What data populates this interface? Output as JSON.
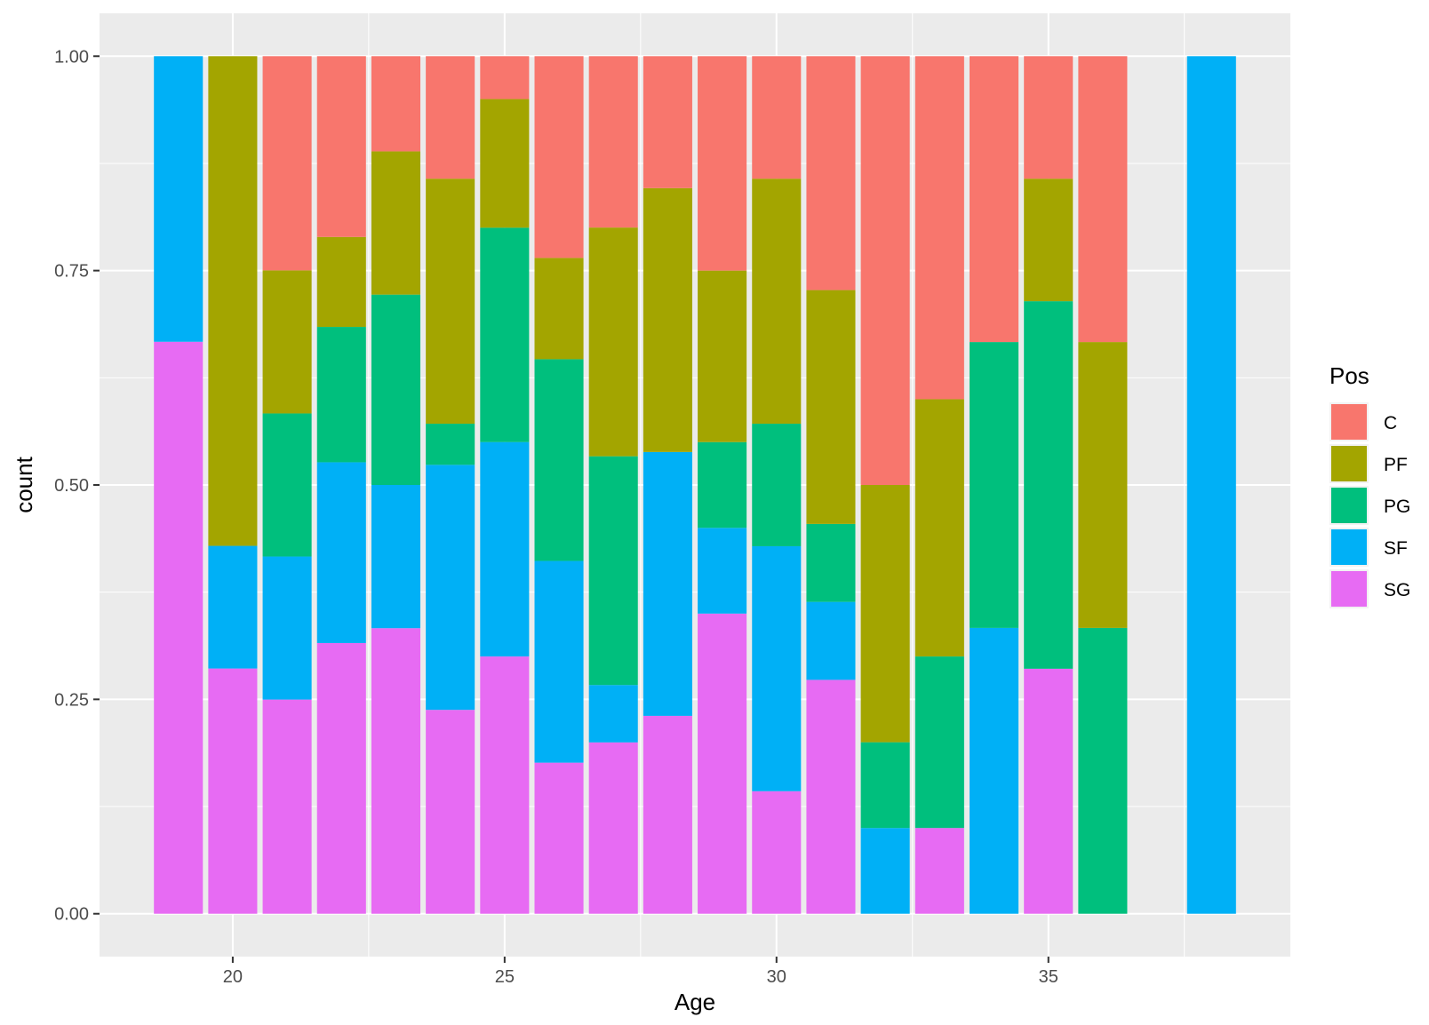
{
  "chart_data": {
    "type": "bar",
    "stacked": "fill",
    "xlabel": "Age",
    "ylabel": "count",
    "xlim": [
      17.55,
      39.45
    ],
    "ylim": [
      -0.05,
      1.05
    ],
    "x_ticks": [
      20,
      25,
      30,
      35
    ],
    "y_ticks": [
      0,
      0.25,
      0.5,
      0.75,
      1
    ],
    "y_tick_labels": [
      "0.00",
      "0.25",
      "0.50",
      "0.75",
      "1.00"
    ],
    "grid": true,
    "legend": {
      "title": "Pos",
      "position": "right"
    },
    "stack_order_bottom_to_top": [
      "SG",
      "SF",
      "PG",
      "PF",
      "C"
    ],
    "series": [
      {
        "name": "C",
        "color": "#F8766D"
      },
      {
        "name": "PF",
        "color": "#A3A500"
      },
      {
        "name": "PG",
        "color": "#00BF7D"
      },
      {
        "name": "SF",
        "color": "#00B0F6"
      },
      {
        "name": "SG",
        "color": "#E76BF3"
      }
    ],
    "bars": [
      {
        "x": 19,
        "values": {
          "C": 0,
          "PF": 0,
          "PG": 0,
          "SF": 0.333,
          "SG": 0.667
        }
      },
      {
        "x": 20,
        "values": {
          "C": 0,
          "PF": 0.571,
          "PG": 0,
          "SF": 0.143,
          "SG": 0.286
        }
      },
      {
        "x": 21,
        "values": {
          "C": 0.25,
          "PF": 0.167,
          "PG": 0.167,
          "SF": 0.167,
          "SG": 0.25
        }
      },
      {
        "x": 22,
        "values": {
          "C": 0.211,
          "PF": 0.105,
          "PG": 0.158,
          "SF": 0.211,
          "SG": 0.316
        }
      },
      {
        "x": 23,
        "values": {
          "C": 0.111,
          "PF": 0.167,
          "PG": 0.222,
          "SF": 0.167,
          "SG": 0.333
        }
      },
      {
        "x": 24,
        "values": {
          "C": 0.143,
          "PF": 0.286,
          "PG": 0.048,
          "SF": 0.286,
          "SG": 0.238
        }
      },
      {
        "x": 25,
        "values": {
          "C": 0.05,
          "PF": 0.15,
          "PG": 0.25,
          "SF": 0.25,
          "SG": 0.3
        }
      },
      {
        "x": 26,
        "values": {
          "C": 0.235,
          "PF": 0.118,
          "PG": 0.235,
          "SF": 0.235,
          "SG": 0.176
        }
      },
      {
        "x": 27,
        "values": {
          "C": 0.2,
          "PF": 0.267,
          "PG": 0.267,
          "SF": 0.067,
          "SG": 0.2
        }
      },
      {
        "x": 28,
        "values": {
          "C": 0.154,
          "PF": 0.308,
          "PG": 0,
          "SF": 0.308,
          "SG": 0.231
        }
      },
      {
        "x": 29,
        "values": {
          "C": 0.25,
          "PF": 0.2,
          "PG": 0.1,
          "SF": 0.1,
          "SG": 0.35
        }
      },
      {
        "x": 30,
        "values": {
          "C": 0.143,
          "PF": 0.286,
          "PG": 0.143,
          "SF": 0.286,
          "SG": 0.143
        }
      },
      {
        "x": 31,
        "values": {
          "C": 0.273,
          "PF": 0.273,
          "PG": 0.091,
          "SF": 0.091,
          "SG": 0.273
        }
      },
      {
        "x": 32,
        "values": {
          "C": 0.5,
          "PF": 0.3,
          "PG": 0.1,
          "SF": 0.1,
          "SG": 0
        }
      },
      {
        "x": 33,
        "values": {
          "C": 0.4,
          "PF": 0.3,
          "PG": 0.2,
          "SF": 0,
          "SG": 0.1
        }
      },
      {
        "x": 34,
        "values": {
          "C": 0.333,
          "PF": 0,
          "PG": 0.333,
          "SF": 0.333,
          "SG": 0
        }
      },
      {
        "x": 35,
        "values": {
          "C": 0.143,
          "PF": 0.143,
          "PG": 0.429,
          "SF": 0,
          "SG": 0.286
        }
      },
      {
        "x": 36,
        "values": {
          "C": 0.333,
          "PF": 0.333,
          "PG": 0.333,
          "SF": 0,
          "SG": 0
        }
      },
      {
        "x": 38,
        "values": {
          "C": 0,
          "PF": 0,
          "PG": 0,
          "SF": 1,
          "SG": 0
        }
      }
    ]
  }
}
